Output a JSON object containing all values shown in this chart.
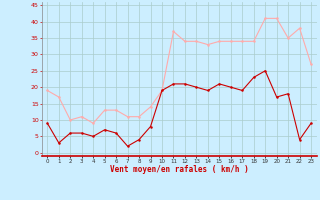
{
  "x": [
    0,
    1,
    2,
    3,
    4,
    5,
    6,
    7,
    8,
    9,
    10,
    11,
    12,
    13,
    14,
    15,
    16,
    17,
    18,
    19,
    20,
    21,
    22,
    23
  ],
  "wind_avg": [
    9,
    3,
    6,
    6,
    5,
    7,
    6,
    2,
    4,
    8,
    19,
    21,
    21,
    20,
    19,
    21,
    20,
    19,
    23,
    25,
    17,
    18,
    4,
    9
  ],
  "wind_gust": [
    19,
    17,
    10,
    11,
    9,
    13,
    13,
    11,
    11,
    14,
    19,
    37,
    34,
    34,
    33,
    34,
    34,
    34,
    34,
    41,
    41,
    35,
    38,
    27
  ],
  "avg_color": "#cc0000",
  "gust_color": "#ffaaaa",
  "bg_color": "#cceeff",
  "grid_color": "#aacccc",
  "xlabel": "Vent moyen/en rafales ( km/h )",
  "xlabel_color": "#cc0000",
  "ylabel_ticks": [
    0,
    5,
    10,
    15,
    20,
    25,
    30,
    35,
    40,
    45
  ],
  "ylim": [
    -1,
    46
  ],
  "xlim": [
    -0.5,
    23.5
  ],
  "figsize": [
    3.2,
    2.0
  ],
  "dpi": 100
}
